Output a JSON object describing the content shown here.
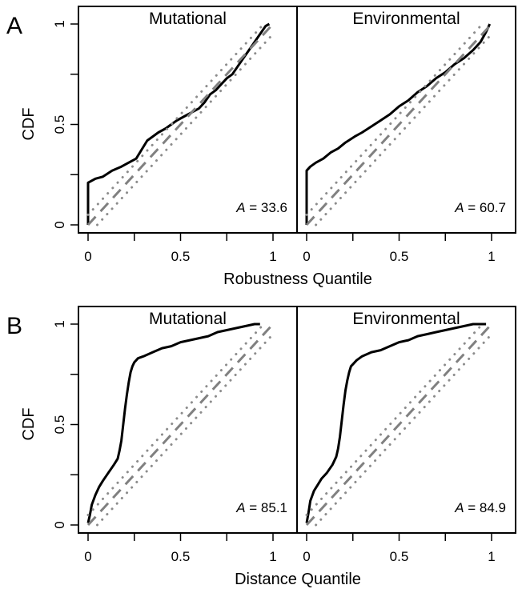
{
  "figure": {
    "rows": [
      {
        "row_label": "A",
        "ylabel": "CDF",
        "xlabel": "Robustness Quantile"
      },
      {
        "row_label": "B",
        "ylabel": "CDF",
        "xlabel": "Distance Quantile"
      }
    ],
    "y_ticks": [
      "0",
      "0.5",
      "1"
    ],
    "x_ticks": [
      "0",
      "0.5",
      "1"
    ]
  },
  "colors": {
    "cdf": "#000000",
    "diagonal": "#808080",
    "bounds": "#8c8c8c",
    "frame": "#000000"
  },
  "chart_data": [
    {
      "type": "line",
      "row": "A",
      "title": "Mutational",
      "xlabel": "Robustness Quantile",
      "ylabel": "CDF",
      "xlim": [
        0,
        1
      ],
      "ylim": [
        0,
        1
      ],
      "annotation": {
        "symbol": "A",
        "eq": " = 33.6"
      },
      "series": [
        {
          "style": "solid",
          "x": [
            0,
            0,
            0.04,
            0.08,
            0.13,
            0.18,
            0.22,
            0.26,
            0.28,
            0.3,
            0.32,
            0.35,
            0.38,
            0.42,
            0.45,
            0.48,
            0.52,
            0.56,
            0.6,
            0.63,
            0.66,
            0.69,
            0.72,
            0.75,
            0.78,
            0.81,
            0.84,
            0.87,
            0.9,
            0.93,
            0.96,
            0.98
          ],
          "y": [
            0,
            0.21,
            0.23,
            0.24,
            0.27,
            0.29,
            0.31,
            0.33,
            0.36,
            0.39,
            0.42,
            0.44,
            0.46,
            0.48,
            0.5,
            0.52,
            0.54,
            0.56,
            0.58,
            0.61,
            0.65,
            0.67,
            0.7,
            0.73,
            0.75,
            0.79,
            0.83,
            0.87,
            0.91,
            0.95,
            0.99,
            1.0
          ]
        },
        {
          "style": "dashed",
          "x": [
            0,
            1
          ],
          "y": [
            0,
            1
          ]
        },
        {
          "style": "dotted",
          "x": [
            0.05,
            1
          ],
          "y": [
            0,
            0.95
          ]
        },
        {
          "style": "dotted",
          "x": [
            0,
            0.95
          ],
          "y": [
            0.05,
            1
          ]
        }
      ]
    },
    {
      "type": "line",
      "row": "A",
      "title": "Environmental",
      "xlabel": "Robustness Quantile",
      "ylabel": "CDF",
      "xlim": [
        0,
        1
      ],
      "ylim": [
        0,
        1
      ],
      "annotation": {
        "symbol": "A",
        "eq": " = 60.7"
      },
      "series": [
        {
          "style": "solid",
          "x": [
            0,
            0,
            0.02,
            0.05,
            0.09,
            0.13,
            0.17,
            0.21,
            0.26,
            0.3,
            0.35,
            0.4,
            0.45,
            0.5,
            0.55,
            0.6,
            0.65,
            0.7,
            0.75,
            0.8,
            0.85,
            0.9,
            0.94,
            0.97,
            0.99
          ],
          "y": [
            0,
            0.27,
            0.29,
            0.31,
            0.33,
            0.36,
            0.38,
            0.41,
            0.44,
            0.46,
            0.49,
            0.52,
            0.55,
            0.59,
            0.62,
            0.66,
            0.69,
            0.73,
            0.76,
            0.8,
            0.83,
            0.87,
            0.91,
            0.96,
            1.0
          ]
        },
        {
          "style": "dashed",
          "x": [
            0,
            1
          ],
          "y": [
            0,
            1
          ]
        },
        {
          "style": "dotted",
          "x": [
            0.05,
            1
          ],
          "y": [
            0,
            0.95
          ]
        },
        {
          "style": "dotted",
          "x": [
            0,
            0.95
          ],
          "y": [
            0.05,
            1
          ]
        }
      ]
    },
    {
      "type": "line",
      "row": "B",
      "title": "Mutational",
      "xlabel": "Distance Quantile",
      "ylabel": "CDF",
      "xlim": [
        0,
        1
      ],
      "ylim": [
        0,
        1
      ],
      "annotation": {
        "symbol": "A",
        "eq": " = 85.1"
      },
      "series": [
        {
          "style": "solid",
          "x": [
            0,
            0.01,
            0.02,
            0.04,
            0.06,
            0.08,
            0.11,
            0.14,
            0.16,
            0.17,
            0.18,
            0.19,
            0.2,
            0.21,
            0.22,
            0.23,
            0.24,
            0.25,
            0.27,
            0.3,
            0.35,
            0.4,
            0.45,
            0.5,
            0.55,
            0.6,
            0.65,
            0.7,
            0.75,
            0.8,
            0.85,
            0.9,
            0.93
          ],
          "y": [
            0.01,
            0.05,
            0.1,
            0.15,
            0.19,
            0.22,
            0.26,
            0.3,
            0.33,
            0.37,
            0.42,
            0.5,
            0.58,
            0.65,
            0.71,
            0.76,
            0.79,
            0.81,
            0.83,
            0.84,
            0.86,
            0.88,
            0.89,
            0.91,
            0.92,
            0.93,
            0.94,
            0.96,
            0.97,
            0.98,
            0.99,
            1.0,
            1.0
          ]
        },
        {
          "style": "dashed",
          "x": [
            0,
            1
          ],
          "y": [
            0,
            1
          ]
        },
        {
          "style": "dotted",
          "x": [
            0.05,
            1
          ],
          "y": [
            0,
            0.95
          ]
        },
        {
          "style": "dotted",
          "x": [
            0,
            0.95
          ],
          "y": [
            0.05,
            1
          ]
        }
      ]
    },
    {
      "type": "line",
      "row": "B",
      "title": "Environmental",
      "xlabel": "Distance Quantile",
      "ylabel": "CDF",
      "xlim": [
        0,
        1
      ],
      "ylim": [
        0,
        1
      ],
      "annotation": {
        "symbol": "A",
        "eq": " = 84.9"
      },
      "series": [
        {
          "style": "solid",
          "x": [
            0,
            0.01,
            0.02,
            0.04,
            0.06,
            0.08,
            0.11,
            0.14,
            0.16,
            0.17,
            0.18,
            0.19,
            0.2,
            0.21,
            0.22,
            0.23,
            0.24,
            0.25,
            0.27,
            0.3,
            0.35,
            0.4,
            0.45,
            0.5,
            0.55,
            0.6,
            0.65,
            0.7,
            0.75,
            0.8,
            0.85,
            0.9,
            0.95,
            0.97
          ],
          "y": [
            0.01,
            0.06,
            0.12,
            0.17,
            0.2,
            0.23,
            0.26,
            0.3,
            0.34,
            0.38,
            0.44,
            0.52,
            0.6,
            0.67,
            0.72,
            0.76,
            0.79,
            0.8,
            0.82,
            0.84,
            0.86,
            0.87,
            0.89,
            0.91,
            0.92,
            0.94,
            0.95,
            0.96,
            0.97,
            0.98,
            0.99,
            1.0,
            1.0,
            1.0
          ]
        },
        {
          "style": "dashed",
          "x": [
            0,
            1
          ],
          "y": [
            0,
            1
          ]
        },
        {
          "style": "dotted",
          "x": [
            0.05,
            1
          ],
          "y": [
            0,
            0.95
          ]
        },
        {
          "style": "dotted",
          "x": [
            0,
            0.95
          ],
          "y": [
            0.05,
            1
          ]
        }
      ]
    }
  ]
}
